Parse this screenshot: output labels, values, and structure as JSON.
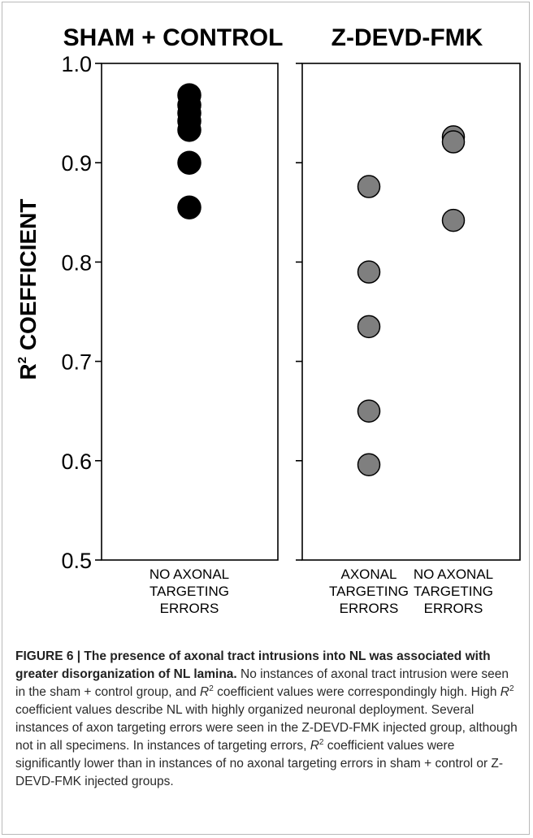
{
  "chart_data": [
    {
      "type": "scatter",
      "title": "SHAM + CONTROL",
      "ylabel_prefix": "R",
      "ylabel_sup": "2",
      "ylabel_suffix": " COEFFICIENT",
      "ylim": [
        0.5,
        1.0
      ],
      "yticks": [
        "1.0",
        "0.9",
        "0.8",
        "0.7",
        "0.6",
        "0.5"
      ],
      "grid": false,
      "categories": [
        {
          "label": [
            "NO AXONAL",
            "TARGETING",
            "ERRORS"
          ],
          "values": [
            0.968,
            0.958,
            0.95,
            0.942,
            0.933,
            0.9,
            0.855
          ],
          "color": "#000000"
        }
      ]
    },
    {
      "type": "scatter",
      "title": "Z-DEVD-FMK",
      "ylim": [
        0.5,
        1.0
      ],
      "grid": false,
      "categories": [
        {
          "label": [
            "AXONAL",
            "TARGETING",
            "ERRORS"
          ],
          "values": [
            0.876,
            0.79,
            0.735,
            0.65,
            0.596
          ],
          "color": "#7f7f7f"
        },
        {
          "label": [
            "NO AXONAL",
            "TARGETING",
            "ERRORS"
          ],
          "values": [
            0.926,
            0.921,
            0.842
          ],
          "color": "#7f7f7f"
        }
      ]
    }
  ],
  "caption": {
    "lead": "FIGURE 6 | The presence of axonal tract intrusions into NL was associated with greater disorganization of NL lamina.",
    "p1": " No instances of axonal tract intrusion were seen in the sham + control group, and ",
    "r": "R",
    "sup": "2",
    "p2": " coefficient values were correspondingly high. High ",
    "p3": " coefficient values describe NL with highly organized neuronal deployment. Several instances of axon targeting errors were seen in the Z-DEVD-FMK injected group, although not in all specimens. In instances of targeting errors, ",
    "p4": " coefficient values were significantly lower than in instances of no axonal targeting errors in sham + control or Z-DEVD-FMK injected groups."
  }
}
